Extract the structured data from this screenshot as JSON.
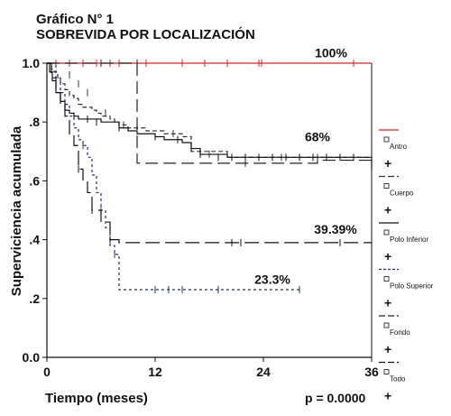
{
  "chart_data": {
    "type": "line",
    "title": "Gráfico N° 1",
    "subtitle": "SOBREVIDA POR LOCALIZACIÓN",
    "xlabel": "Tiempo (meses)",
    "ylabel": "Superviciencia acumulada",
    "xlim": [
      0,
      36
    ],
    "ylim": [
      0,
      1.0
    ],
    "xticks": [
      0,
      12,
      24,
      36
    ],
    "yticks": [
      0.0,
      0.2,
      0.4,
      0.6,
      0.8,
      1.0
    ],
    "xtick_labels": [
      "0",
      "12",
      "24",
      "36"
    ],
    "ytick_labels": [
      "0.0",
      ".2",
      ".4",
      ".6",
      ".8",
      "1.0"
    ],
    "pvalue": "p = 0.0000",
    "legend_position": "right",
    "annotations": [
      {
        "text": "100%",
        "x": 31.5,
        "y": 1.02
      },
      {
        "text": "68%",
        "x": 30.0,
        "y": 0.735
      },
      {
        "text": "39.39%",
        "x": 32.0,
        "y": 0.42
      },
      {
        "text": "23.3%",
        "x": 25.0,
        "y": 0.25
      }
    ],
    "series": [
      {
        "name": "Antro",
        "color": "#d62424",
        "dash": "",
        "x": [
          0,
          36
        ],
        "y": [
          1.0,
          1.0
        ],
        "censored": [
          [
            1,
            1.0
          ],
          [
            2.5,
            1.0
          ],
          [
            4,
            1.0
          ],
          [
            5.5,
            1.0
          ],
          [
            7,
            1.0
          ],
          [
            8,
            1.0
          ],
          [
            11,
            1.0
          ],
          [
            15,
            1.0
          ],
          [
            17.5,
            1.0
          ],
          [
            20,
            1.0
          ],
          [
            23.5,
            1.0
          ],
          [
            23.8,
            1.0
          ],
          [
            34,
            1.0
          ]
        ]
      },
      {
        "name": "Cuerpo",
        "color": "#333333",
        "dash": "5,3",
        "x": [
          0,
          0.5,
          0.8,
          1.2,
          1.5,
          2.0,
          2.5,
          3,
          3.5,
          4,
          5,
          5.5,
          6,
          7,
          7.5,
          8,
          9,
          10,
          11,
          12,
          13,
          14,
          15,
          16,
          20,
          25,
          30,
          36
        ],
        "y": [
          1.0,
          0.98,
          0.97,
          0.95,
          0.93,
          0.91,
          0.89,
          0.88,
          0.86,
          0.85,
          0.84,
          0.83,
          0.82,
          0.81,
          0.8,
          0.79,
          0.78,
          0.78,
          0.77,
          0.77,
          0.76,
          0.76,
          0.75,
          0.7,
          0.68,
          0.68,
          0.68,
          0.68
        ],
        "censored": [
          [
            2.5,
            0.96
          ],
          [
            3.5,
            0.93
          ],
          [
            4.5,
            0.9
          ],
          [
            6.5,
            0.83
          ],
          [
            8.5,
            0.79
          ],
          [
            14,
            0.76
          ],
          [
            18,
            0.69
          ],
          [
            22,
            0.68
          ],
          [
            26,
            0.68
          ],
          [
            30,
            0.68
          ]
        ]
      },
      {
        "name": "Polo Inferior",
        "color": "#111111",
        "dash": "",
        "x": [
          0,
          0.3,
          0.6,
          1,
          1.5,
          2,
          2.5,
          3,
          3.5,
          4,
          5,
          6,
          7,
          8,
          9,
          10,
          11,
          12,
          13,
          14,
          15,
          16,
          17,
          20,
          30,
          36
        ],
        "y": [
          1.0,
          0.97,
          0.94,
          0.9,
          0.87,
          0.84,
          0.83,
          0.82,
          0.81,
          0.81,
          0.81,
          0.8,
          0.8,
          0.78,
          0.77,
          0.76,
          0.76,
          0.75,
          0.74,
          0.74,
          0.73,
          0.71,
          0.69,
          0.68,
          0.68,
          0.64
        ],
        "censored": [
          [
            2,
            0.83
          ],
          [
            3,
            0.82
          ],
          [
            4.5,
            0.81
          ],
          [
            5.5,
            0.8
          ],
          [
            8,
            0.78
          ],
          [
            12,
            0.75
          ],
          [
            14.5,
            0.74
          ],
          [
            16,
            0.71
          ],
          [
            17,
            0.69
          ],
          [
            19,
            0.68
          ],
          [
            20.5,
            0.68
          ],
          [
            22,
            0.68
          ],
          [
            23.5,
            0.68
          ],
          [
            25,
            0.68
          ],
          [
            26.5,
            0.68
          ],
          [
            28,
            0.68
          ],
          [
            29.5,
            0.68
          ],
          [
            31,
            0.68
          ],
          [
            32.5,
            0.68
          ],
          [
            34,
            0.68
          ]
        ]
      },
      {
        "name": "Polo Superior",
        "color": "#1f2f6e",
        "dash": "3,3",
        "x": [
          0,
          1,
          1.5,
          2,
          2.5,
          3,
          3.5,
          4,
          4.5,
          5,
          5.5,
          6,
          6.5,
          7,
          7.5,
          8,
          12,
          16,
          20,
          24,
          28
        ],
        "y": [
          1.0,
          0.95,
          0.9,
          0.86,
          0.82,
          0.78,
          0.74,
          0.72,
          0.68,
          0.62,
          0.56,
          0.5,
          0.44,
          0.38,
          0.35,
          0.23,
          0.23,
          0.23,
          0.23,
          0.23,
          0.23
        ],
        "censored": [
          [
            4,
            0.72
          ],
          [
            6,
            0.5
          ],
          [
            7.5,
            0.35
          ],
          [
            12,
            0.23
          ],
          [
            13.5,
            0.23
          ],
          [
            15,
            0.23
          ],
          [
            19,
            0.23
          ],
          [
            28,
            0.23
          ]
        ]
      },
      {
        "name": "Fondo",
        "color": "#222222",
        "dash": "14,6",
        "x": [
          0,
          10,
          10,
          30,
          30,
          36
        ],
        "y": [
          1.0,
          1.0,
          0.66,
          0.66,
          0.67,
          0.67
        ],
        "censored": [
          [
            6,
            1.0
          ],
          [
            10,
            1.0
          ],
          [
            22,
            0.66
          ]
        ]
      },
      {
        "name": "Todo",
        "color": "#111111",
        "dash": "16,6",
        "x": [
          0,
          0.5,
          1,
          1.5,
          2,
          2.5,
          3,
          3.5,
          4,
          4.5,
          5,
          6,
          7,
          8,
          12,
          24,
          36
        ],
        "y": [
          1.0,
          0.95,
          0.9,
          0.86,
          0.82,
          0.76,
          0.72,
          0.64,
          0.6,
          0.56,
          0.5,
          0.46,
          0.4,
          0.39,
          0.39,
          0.39,
          0.39
        ],
        "censored": [
          [
            3.5,
            0.64
          ],
          [
            5,
            0.5
          ],
          [
            7,
            0.4
          ],
          [
            20.5,
            0.39
          ],
          [
            21.5,
            0.39
          ],
          [
            32.5,
            0.39
          ]
        ]
      }
    ]
  }
}
